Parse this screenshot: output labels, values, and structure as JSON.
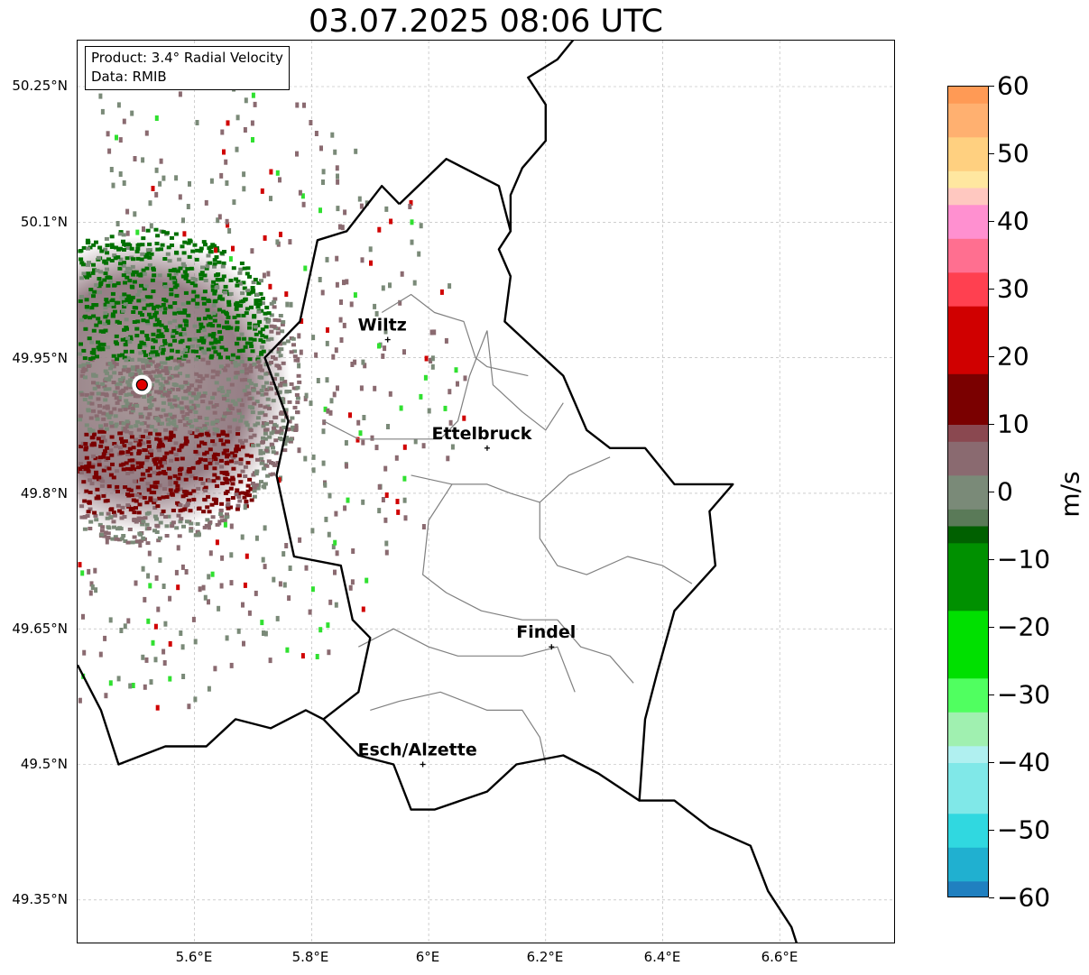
{
  "title": "03.07.2025 08:06 UTC",
  "infobox": {
    "product": "Product: 3.4° Radial Velocity",
    "data": "Data: RMIB"
  },
  "axes": {
    "lat_labels": [
      "50.25°N",
      "50.1°N",
      "49.95°N",
      "49.8°N",
      "49.65°N",
      "49.5°N",
      "49.35°N"
    ],
    "lon_labels": [
      "5.6°E",
      "5.8°E",
      "6°E",
      "6.2°E",
      "6.4°E",
      "6.6°E"
    ]
  },
  "cities": [
    {
      "name": "Wiltz",
      "lon": 5.93,
      "lat": 49.97
    },
    {
      "name": "Ettelbruck",
      "lon": 6.1,
      "lat": 49.85
    },
    {
      "name": "Findel",
      "lon": 6.21,
      "lat": 49.63
    },
    {
      "name": "Esch/Alzette",
      "lon": 5.99,
      "lat": 49.5
    }
  ],
  "radar_site": {
    "lon": 5.51,
    "lat": 49.92,
    "color": "#e00000"
  },
  "colorbar": {
    "label": "m/s",
    "ticks": [
      "60",
      "50",
      "40",
      "30",
      "20",
      "10",
      "0",
      "−10",
      "−20",
      "−30",
      "−40",
      "−50",
      "−60"
    ],
    "min": -60,
    "max": 60,
    "stops": [
      {
        "v": 60,
        "c": "#ff9a55"
      },
      {
        "v": 55,
        "c": "#ffb070"
      },
      {
        "v": 50,
        "c": "#ffd080"
      },
      {
        "v": 47,
        "c": "#ffe7a0"
      },
      {
        "v": 44,
        "c": "#ffc8c0"
      },
      {
        "v": 40,
        "c": "#ff90d0"
      },
      {
        "v": 35,
        "c": "#ff6f90"
      },
      {
        "v": 30,
        "c": "#ff4050"
      },
      {
        "v": 28,
        "c": "#ff0000"
      },
      {
        "v": 20,
        "c": "#d00000"
      },
      {
        "v": 12,
        "c": "#7a0000"
      },
      {
        "v": 8,
        "c": "#8a4850"
      },
      {
        "v": 3,
        "c": "#8a6a70"
      },
      {
        "v": 0,
        "c": "#7a8a78"
      },
      {
        "v": -3,
        "c": "#5a7a58"
      },
      {
        "v": -6,
        "c": "#006000"
      },
      {
        "v": -15,
        "c": "#009000"
      },
      {
        "v": -25,
        "c": "#00e000"
      },
      {
        "v": -30,
        "c": "#50ff60"
      },
      {
        "v": -35,
        "c": "#a0f0b0"
      },
      {
        "v": -38,
        "c": "#b0f0f0"
      },
      {
        "v": -45,
        "c": "#80e8e8"
      },
      {
        "v": -52,
        "c": "#30d8e0"
      },
      {
        "v": -56,
        "c": "#20b0d0"
      },
      {
        "v": -60,
        "c": "#2080c0"
      }
    ]
  },
  "colors": {
    "border": "#000000",
    "canton": "#808080",
    "grid": "#b0b0b0",
    "receding_red": "#7a0000",
    "approaching_green": "#007000",
    "neutral_gray": "#7a8a78",
    "neutral_mauve": "#8a6a70"
  }
}
